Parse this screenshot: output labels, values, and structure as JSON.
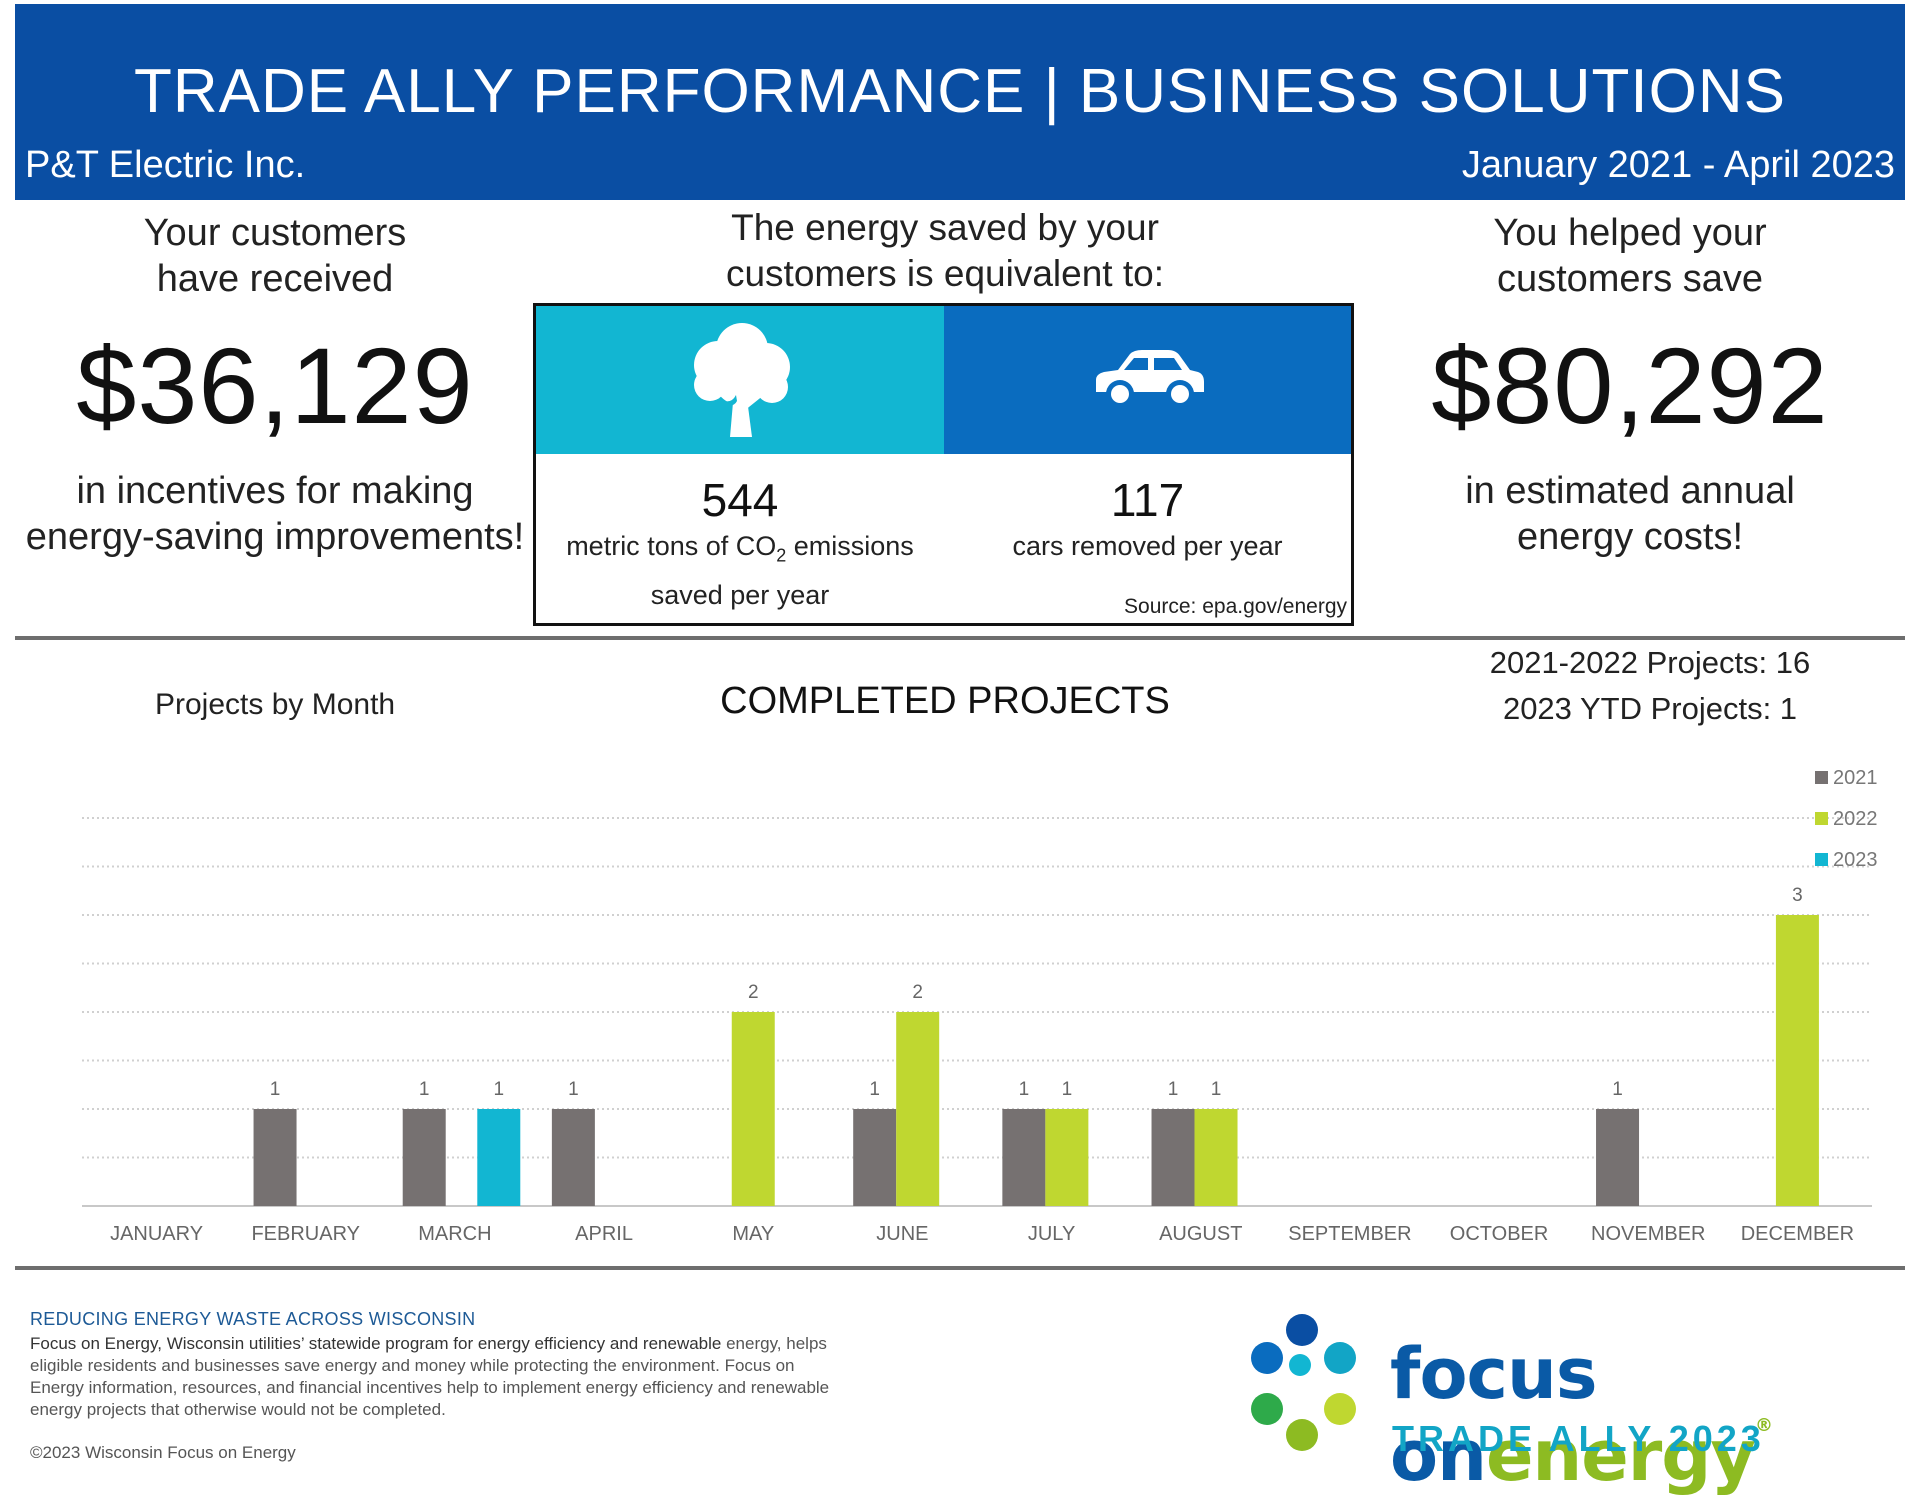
{
  "header": {
    "title": "TRADE ALLY PERFORMANCE  |  BUSINESS SOLUTIONS",
    "company": "P&T Electric Inc.",
    "date_range": "January 2021 - April 2023"
  },
  "incentives": {
    "intro_line1": "Your customers",
    "intro_line2": "have received",
    "amount": "$36,129",
    "outro_line1": "in incentives for making",
    "outro_line2": "energy-saving improvements!"
  },
  "equivalent": {
    "title_line1": "The energy saved by your",
    "title_line2": "customers is equivalent to:",
    "co2_value": "544",
    "co2_desc_prefix": "metric tons of CO",
    "co2_desc_sub": "2",
    "co2_desc_suffix": " emissions",
    "co2_desc_line2": "saved per year",
    "cars_value": "117",
    "cars_desc": "cars removed per year",
    "source": "Source: epa.gov/energy",
    "colors": {
      "tree_tile": "#12b6d2",
      "car_tile": "#0a6cbf"
    }
  },
  "savings": {
    "intro_line1": "You helped your",
    "intro_line2": "customers save",
    "amount": "$80,292",
    "outro_line1": "in estimated annual",
    "outro_line2": "energy costs!"
  },
  "projects": {
    "label": "Projects by Month",
    "title": "COMPLETED PROJECTS",
    "total_2021_2022": "2021-2022 Projects: 16",
    "ytd_2023": "2023 YTD Projects: 1"
  },
  "chart_data": {
    "type": "bar",
    "title": "COMPLETED PROJECTS",
    "xlabel": "",
    "ylabel": "",
    "ylim": [
      0,
      4
    ],
    "gridlines": 8,
    "legend_position": "top-right",
    "categories": [
      "JANUARY",
      "FEBRUARY",
      "MARCH",
      "APRIL",
      "MAY",
      "JUNE",
      "JULY",
      "AUGUST",
      "SEPTEMBER",
      "OCTOBER",
      "NOVEMBER",
      "DECEMBER"
    ],
    "series": [
      {
        "name": "2021",
        "color": "#767171",
        "values": [
          0,
          1,
          1,
          1,
          0,
          1,
          1,
          1,
          0,
          0,
          1,
          0
        ]
      },
      {
        "name": "2022",
        "color": "#bfd730",
        "values": [
          0,
          0,
          0,
          0,
          2,
          2,
          1,
          1,
          0,
          0,
          0,
          3
        ]
      },
      {
        "name": "2023",
        "color": "#12b6d2",
        "values": [
          0,
          0,
          1,
          0,
          0,
          0,
          0,
          0,
          0,
          0,
          0,
          0
        ]
      }
    ]
  },
  "footer": {
    "heading": "REDUCING ENERGY WASTE ACROSS WISCONSIN",
    "body_lead": "Focus on Energy, Wisconsin utilities’ statewide program for energy efficiency and renewable",
    "body_rest": "energy, helps eligible residents and businesses save energy and money while protecting the environment. Focus on Energy information, resources, and financial incentives help to implement energy efficiency and renewable energy projects that otherwise would not be completed.",
    "copyright": "©2023 Wisconsin Focus on Energy"
  },
  "logo": {
    "word_focus": "focus",
    "word_on": "on",
    "word_energy": "energy",
    "registered": "®",
    "tagline": "TRADE ALLY 2023",
    "dot_colors": [
      "#0a4ea3",
      "#0a6cbf",
      "#12a5c6",
      "#12b6d2",
      "#2eaa4a",
      "#8dbb22",
      "#bfd730"
    ]
  }
}
